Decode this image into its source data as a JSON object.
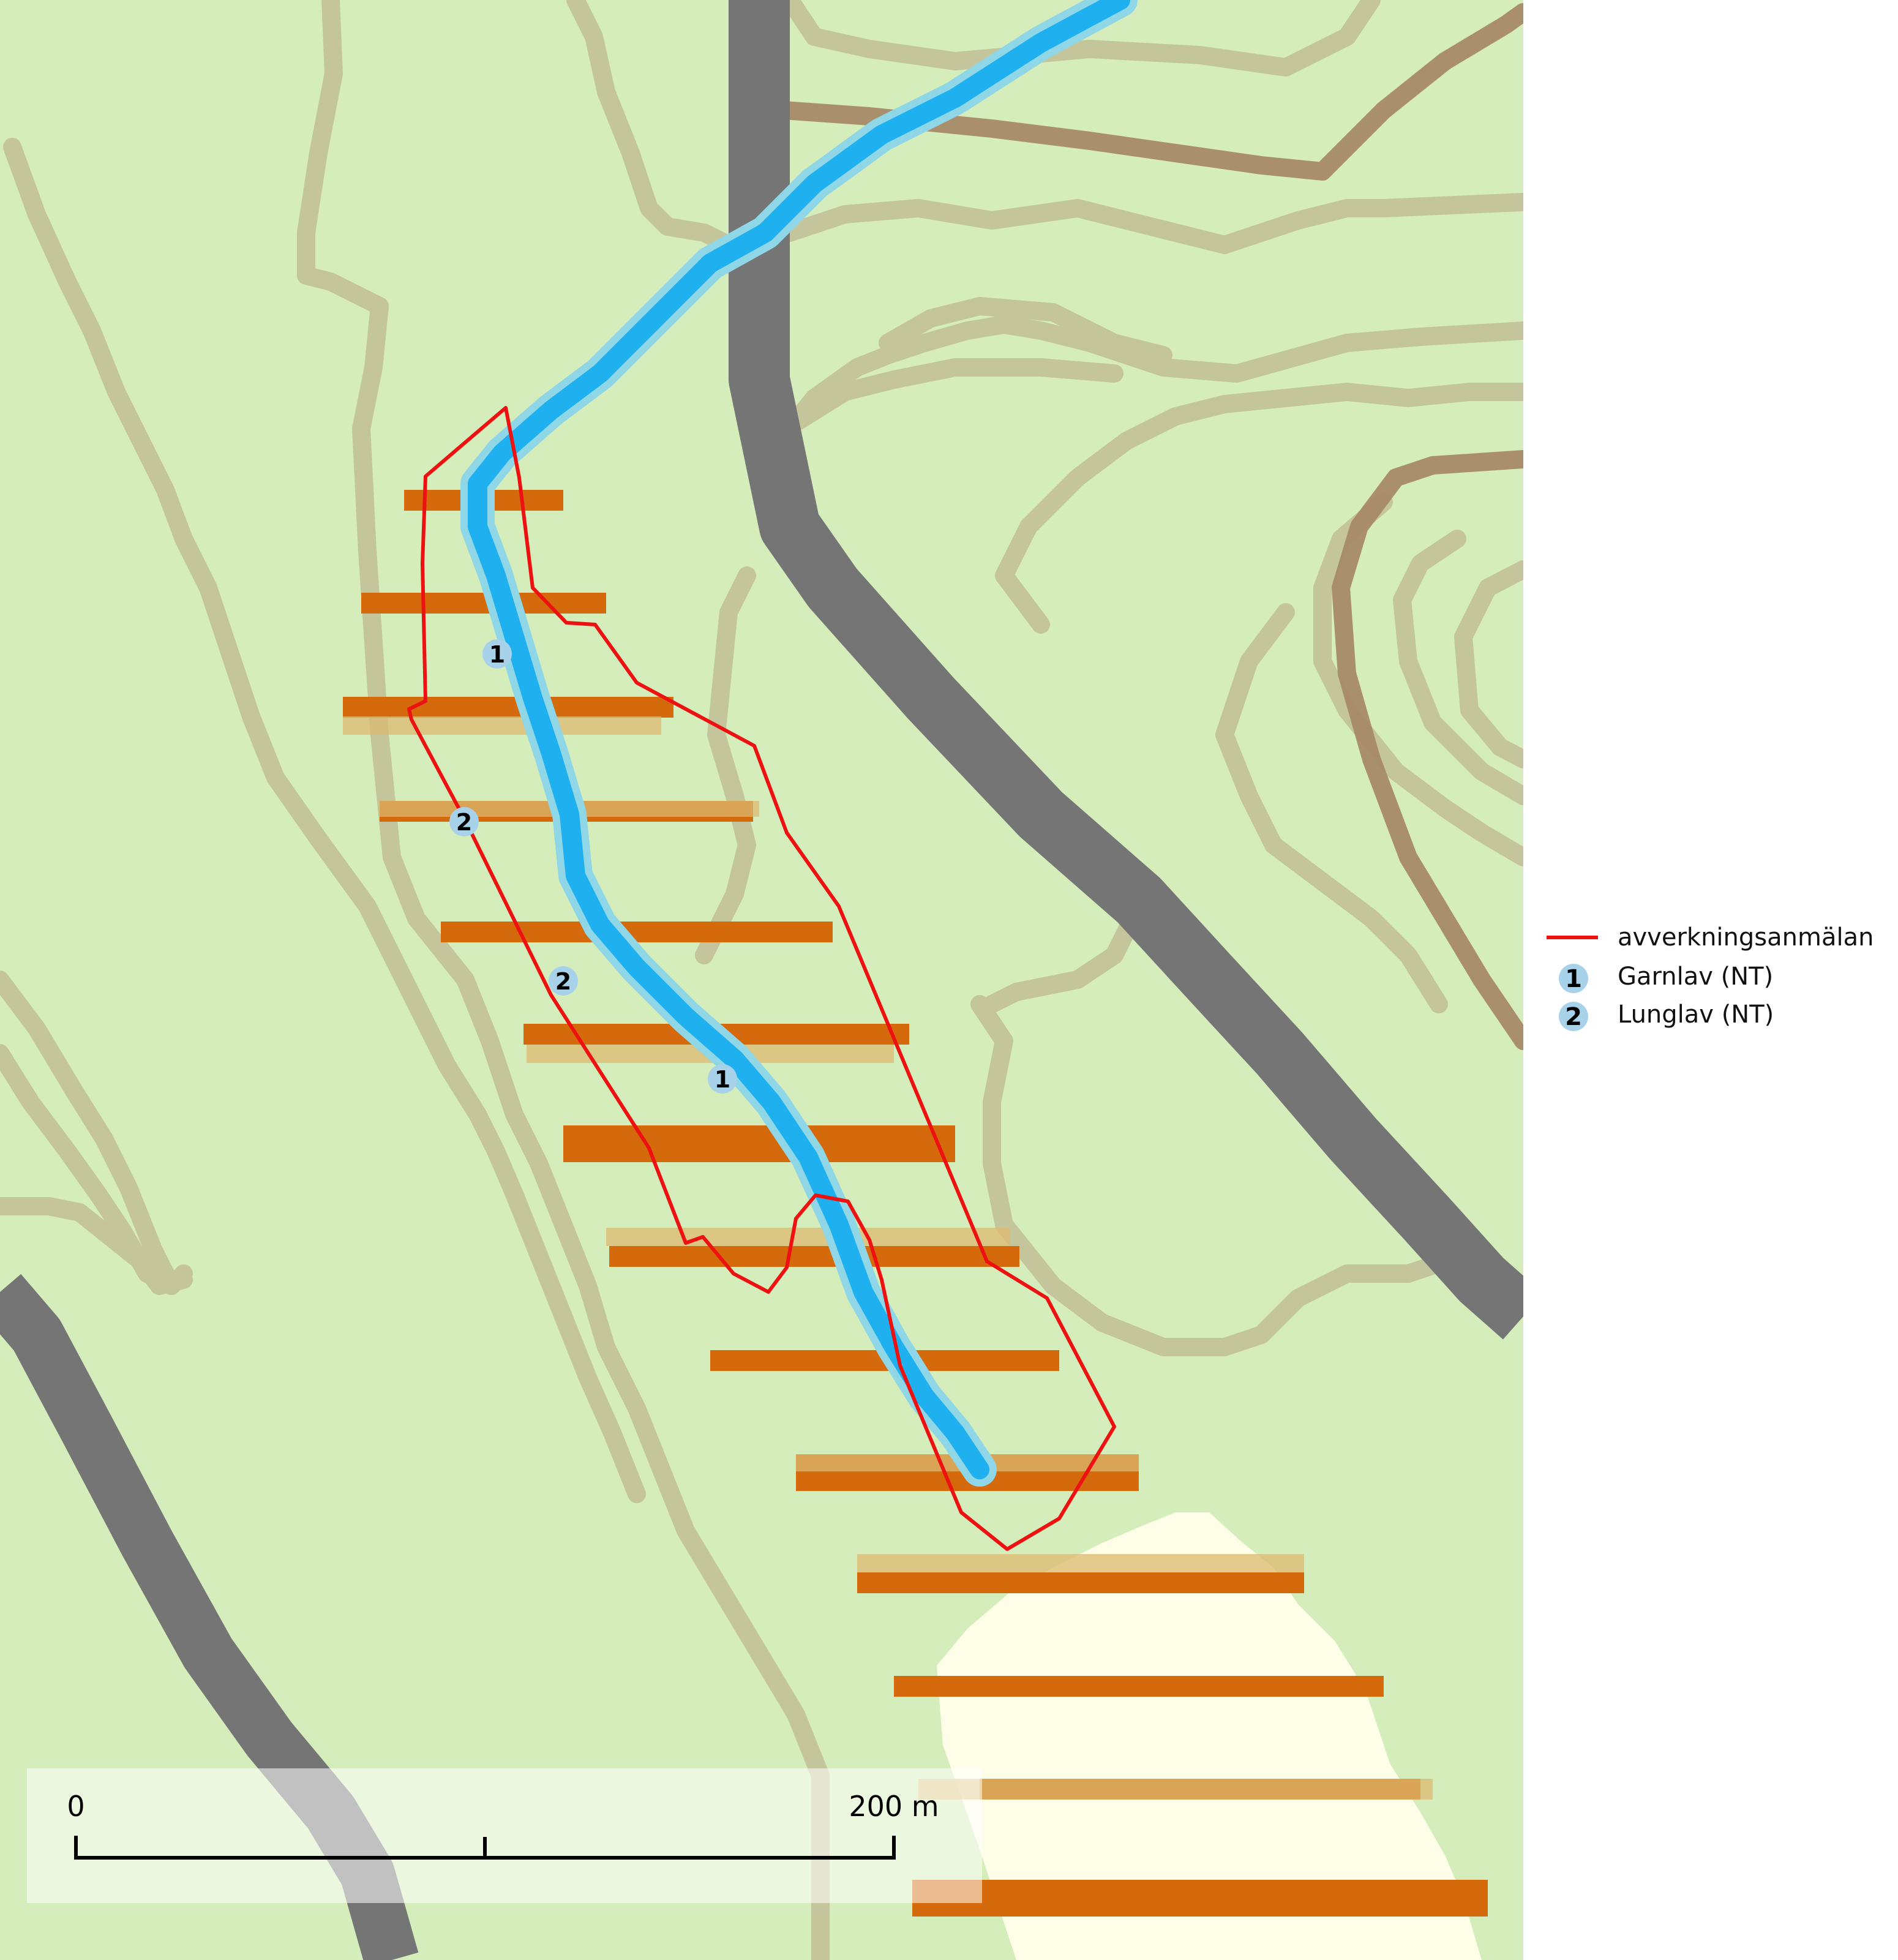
{
  "colors": {
    "land": "#d5edbb",
    "contour": "#c4c39a",
    "contour_index": "#a88a68",
    "road": "#757575",
    "stream": "#1fb0ef",
    "stream_edge": "#8fd6e6",
    "powerline": "#d46a0c",
    "powerline_light": "#dc9a48",
    "open_land": "#fdfde8",
    "boundary": "#ee1111",
    "marker_fill": "#a8d2ea"
  },
  "legend": {
    "items": [
      {
        "symbol": "line",
        "label": "avverkningsanmälan"
      },
      {
        "symbol": "marker",
        "number": "1",
        "label": "Garnlav (NT)"
      },
      {
        "symbol": "marker",
        "number": "2",
        "label": "Lunglav (NT)"
      }
    ]
  },
  "observations": [
    {
      "species": "Garnlav (NT)",
      "number": "1"
    },
    {
      "species": "Lunglav (NT)",
      "number": "2"
    },
    {
      "species": "Lunglav (NT)",
      "number": "2"
    },
    {
      "species": "Garnlav (NT)",
      "number": "1"
    }
  ],
  "scalebar": {
    "start_label": "0",
    "end_label": "200 m"
  }
}
